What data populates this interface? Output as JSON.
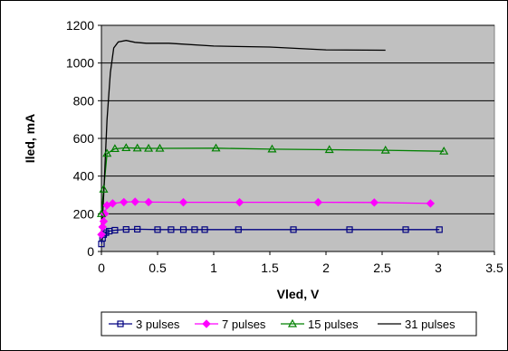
{
  "chart_data": {
    "type": "line",
    "title": "",
    "xlabel": "Vled, V",
    "ylabel": "Iled, mA",
    "xlim": [
      0,
      3.5
    ],
    "ylim": [
      0,
      1200
    ],
    "x_ticks": [
      "0",
      "0.5",
      "1",
      "1.5",
      "2",
      "2.5",
      "3",
      "3.5"
    ],
    "y_ticks": [
      "0",
      "200",
      "400",
      "600",
      "800",
      "1000",
      "1200"
    ],
    "grid": "horizontal",
    "plot_background": "#c0c0c0",
    "legend_position": "bottom",
    "series": [
      {
        "name": "3 pulses",
        "color": "#000080",
        "marker": "square",
        "points": [
          [
            0.0,
            40
          ],
          [
            0.01,
            70
          ],
          [
            0.02,
            90
          ],
          [
            0.04,
            100
          ],
          [
            0.07,
            108
          ],
          [
            0.12,
            113
          ],
          [
            0.22,
            117
          ],
          [
            0.32,
            118
          ],
          [
            0.5,
            116
          ],
          [
            0.62,
            116
          ],
          [
            0.73,
            116
          ],
          [
            0.83,
            116
          ],
          [
            0.92,
            116
          ],
          [
            1.22,
            116
          ],
          [
            1.71,
            116
          ],
          [
            2.21,
            116
          ],
          [
            2.71,
            116
          ],
          [
            3.01,
            116
          ]
        ]
      },
      {
        "name": "7 pulses",
        "color": "#ff00ff",
        "marker": "diamond",
        "points": [
          [
            0.0,
            90
          ],
          [
            0.01,
            130
          ],
          [
            0.02,
            160
          ],
          [
            0.03,
            200
          ],
          [
            0.05,
            245
          ],
          [
            0.1,
            255
          ],
          [
            0.2,
            262
          ],
          [
            0.3,
            264
          ],
          [
            0.42,
            262
          ],
          [
            0.73,
            261
          ],
          [
            1.23,
            261
          ],
          [
            1.93,
            261
          ],
          [
            2.43,
            260
          ],
          [
            2.93,
            255
          ]
        ]
      },
      {
        "name": "15 pulses",
        "color": "#008000",
        "marker": "triangle",
        "points": [
          [
            0.0,
            200
          ],
          [
            0.02,
            330
          ],
          [
            0.05,
            520
          ],
          [
            0.12,
            545
          ],
          [
            0.22,
            550
          ],
          [
            0.32,
            548
          ],
          [
            0.42,
            547
          ],
          [
            0.52,
            547
          ],
          [
            1.02,
            548
          ],
          [
            1.52,
            543
          ],
          [
            2.03,
            540
          ],
          [
            2.53,
            537
          ],
          [
            3.05,
            532
          ]
        ]
      },
      {
        "name": "31 pulses",
        "color": "#000000",
        "marker": "none",
        "points": [
          [
            0.0,
            60
          ],
          [
            0.02,
            300
          ],
          [
            0.05,
            700
          ],
          [
            0.08,
            950
          ],
          [
            0.11,
            1080
          ],
          [
            0.15,
            1112
          ],
          [
            0.22,
            1120
          ],
          [
            0.3,
            1110
          ],
          [
            0.4,
            1105
          ],
          [
            0.6,
            1105
          ],
          [
            1.0,
            1090
          ],
          [
            1.5,
            1085
          ],
          [
            2.0,
            1070
          ],
          [
            2.53,
            1068
          ]
        ]
      }
    ]
  }
}
